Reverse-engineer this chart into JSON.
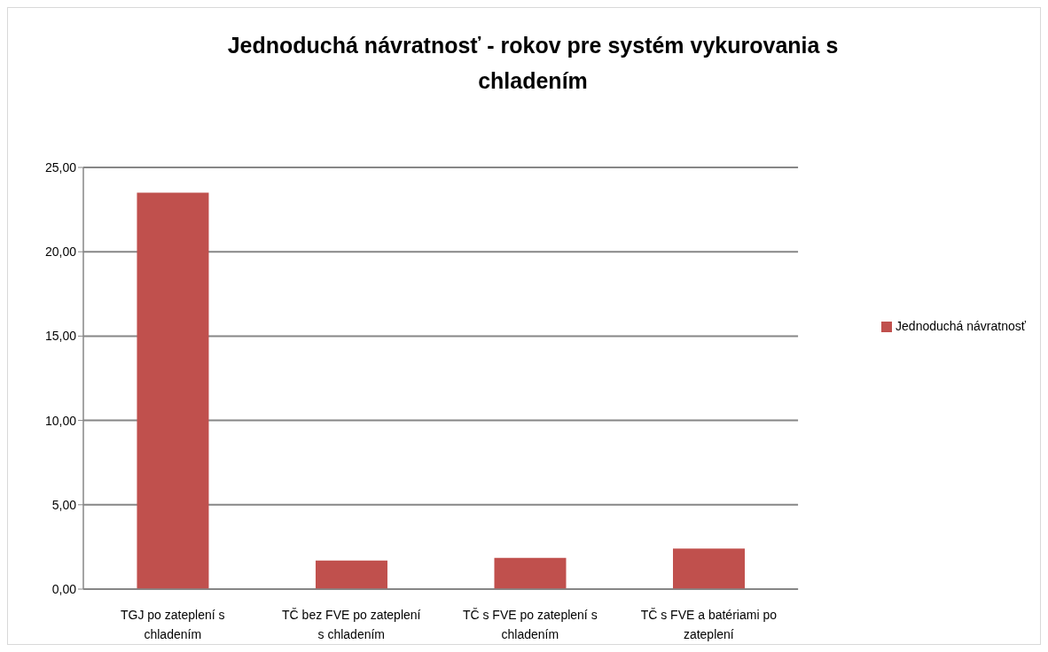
{
  "chart_data": {
    "type": "bar",
    "title": "Jednoduchá návratnosť - rokov pre systém vykurovania s chladením",
    "categories": [
      "TGJ po zateplení s chladením",
      "TČ bez FVE po zateplení s chladením",
      "TČ s FVE po zateplení s chladením",
      "TČ s FVE a batériami po zateplení"
    ],
    "series": [
      {
        "name": "Jednoduchá návratnosť",
        "color": "#c0504d",
        "values": [
          23.5,
          1.7,
          1.85,
          2.4
        ]
      }
    ],
    "ylim": [
      0,
      25
    ],
    "yticks": [
      {
        "value": 0,
        "label": "0,00"
      },
      {
        "value": 5,
        "label": "5,00"
      },
      {
        "value": 10,
        "label": "10,00"
      },
      {
        "value": 15,
        "label": "15,00"
      },
      {
        "value": 20,
        "label": "20,00"
      },
      {
        "value": 25,
        "label": "25,00"
      }
    ],
    "grid": "y",
    "legend": "right"
  }
}
